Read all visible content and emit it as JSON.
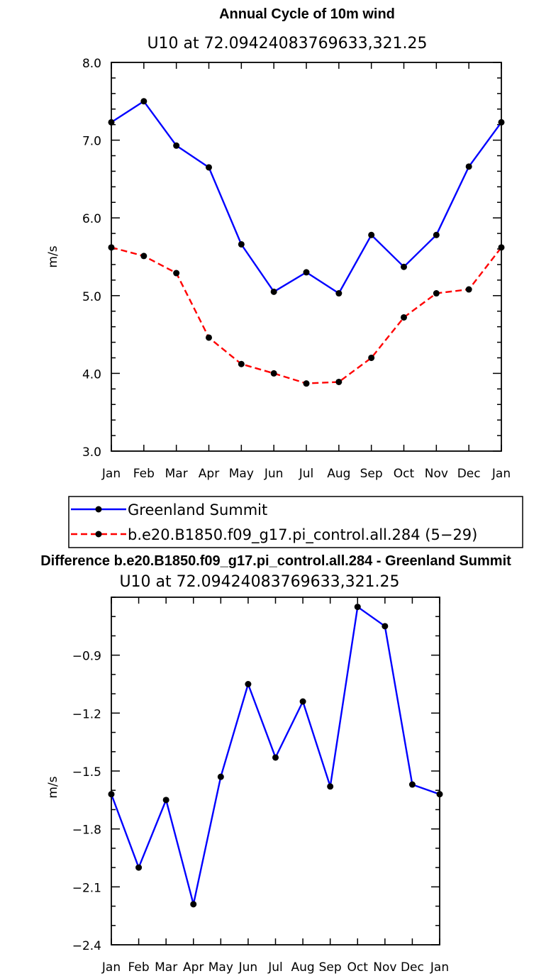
{
  "chart_data": [
    {
      "type": "line",
      "title": "Annual Cycle of 10m wind",
      "subtitle": "U10  at  72.09424083769633,321.25",
      "ylabel": "m/s",
      "xlabel": "",
      "categories": [
        "Jan",
        "Feb",
        "Mar",
        "Apr",
        "May",
        "Jun",
        "Jul",
        "Aug",
        "Sep",
        "Oct",
        "Nov",
        "Dec",
        "Jan"
      ],
      "ylim": [
        3.0,
        8.0
      ],
      "yticks": [
        "3.0",
        "4.0",
        "5.0",
        "6.0",
        "7.0",
        "8.0"
      ],
      "series": [
        {
          "name": "Greenland Summit",
          "color": "#0000ff",
          "dash": "solid",
          "values": [
            7.23,
            7.5,
            6.93,
            6.65,
            5.66,
            5.05,
            5.3,
            5.03,
            5.78,
            5.37,
            5.78,
            6.66,
            7.23
          ]
        },
        {
          "name": "b.e20.B1850.f09_g17.pi_control.all.284 (5−29)",
          "color": "#ff0000",
          "dash": "dashed",
          "values": [
            5.62,
            5.51,
            5.29,
            4.46,
            4.12,
            4.0,
            3.87,
            3.89,
            4.2,
            4.72,
            5.03,
            5.08,
            5.62
          ]
        }
      ]
    },
    {
      "type": "line",
      "title": "Difference b.e20.B1850.f09_g17.pi_control.all.284 - Greenland Summit",
      "subtitle": "U10  at  72.09424083769633,321.25",
      "ylabel": "m/s",
      "xlabel": "",
      "categories": [
        "Jan",
        "Feb",
        "Mar",
        "Apr",
        "May",
        "Jun",
        "Jul",
        "Aug",
        "Sep",
        "Oct",
        "Nov",
        "Dec",
        "Jan"
      ],
      "ylim": [
        -2.4,
        -0.6
      ],
      "yticks": [
        "-2.4",
        "-2.1",
        "-1.8",
        "-1.5",
        "-1.2",
        "-0.9"
      ],
      "series": [
        {
          "name": "",
          "color": "#0000ff",
          "dash": "solid",
          "values": [
            -1.62,
            -2.0,
            -1.65,
            -2.19,
            -1.53,
            -1.05,
            -1.43,
            -1.14,
            -1.58,
            -0.65,
            -0.75,
            -1.57,
            -1.62
          ]
        }
      ]
    }
  ]
}
